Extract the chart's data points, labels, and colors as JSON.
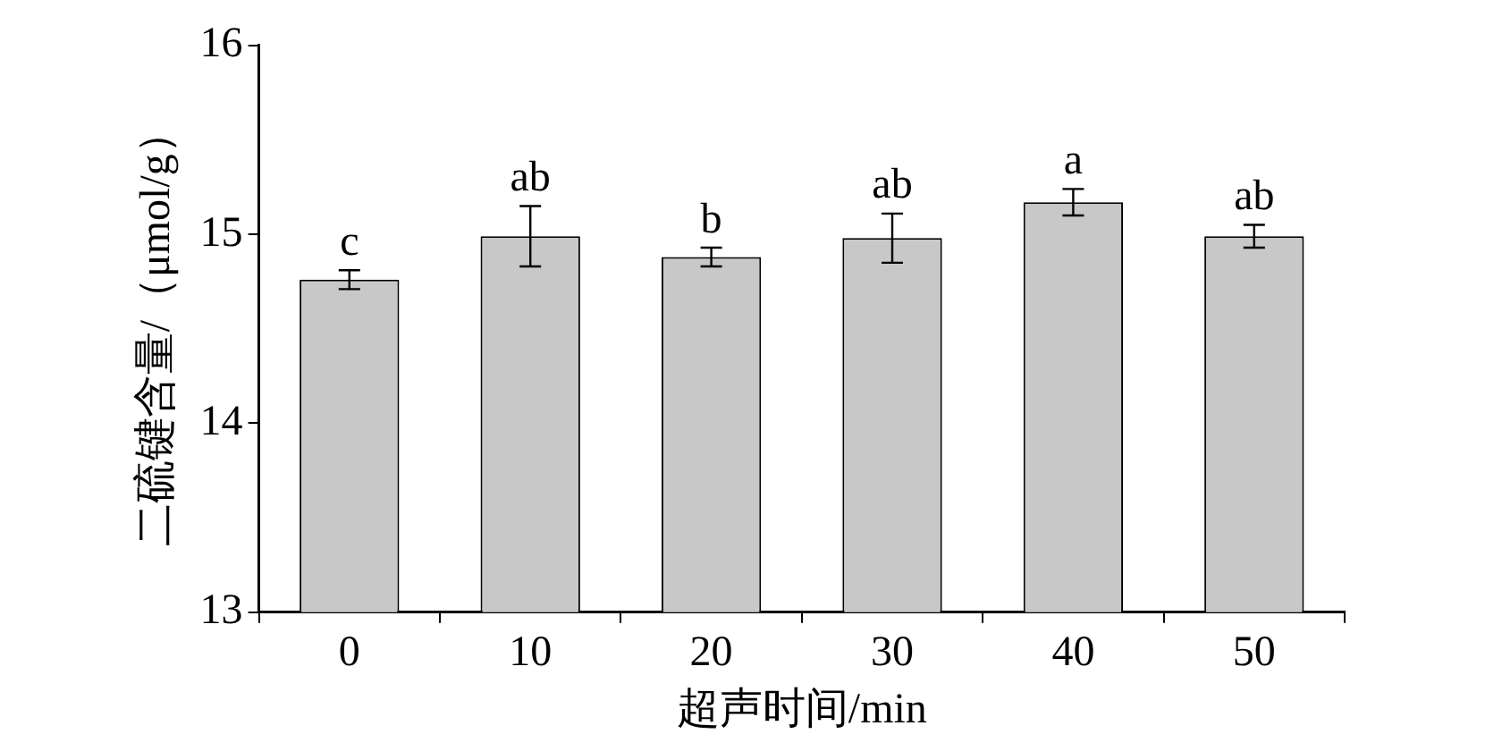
{
  "chart_data": {
    "type": "bar",
    "xlabel": "超声时间/min",
    "ylabel": "二硫键含量/（μmol/g）",
    "categories": [
      "0",
      "10",
      "20",
      "30",
      "40",
      "50"
    ],
    "values": [
      14.76,
      14.99,
      14.88,
      14.98,
      15.17,
      14.99
    ],
    "errors": [
      0.05,
      0.16,
      0.05,
      0.13,
      0.07,
      0.06
    ],
    "color": "#c8c8c8",
    "ylim": [
      13,
      16
    ],
    "yticks": [
      13,
      14,
      15,
      16
    ],
    "annotations": [
      {
        "text": "c",
        "x": "0",
        "y": 14.81
      },
      {
        "text": "ab",
        "x": "10",
        "y": 15.15
      },
      {
        "text": "b",
        "x": "20",
        "y": 14.93
      },
      {
        "text": "ab",
        "x": "30",
        "y": 15.11
      },
      {
        "text": "a",
        "x": "40",
        "y": 15.24
      },
      {
        "text": "ab",
        "x": "50",
        "y": 15.05
      }
    ]
  }
}
